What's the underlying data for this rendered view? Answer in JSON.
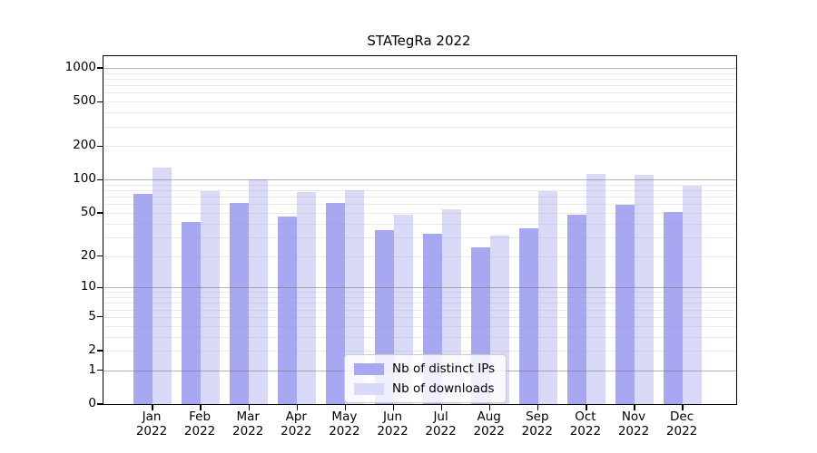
{
  "title": "STATegRa 2022",
  "chart_data": {
    "type": "bar",
    "title": "STATegRa 2022",
    "xlabel": "",
    "ylabel": "",
    "scale": "log1p",
    "grid": true,
    "legend_position": "bottom-center",
    "categories": [
      "Jan 2022",
      "Feb 2022",
      "Mar 2022",
      "Apr 2022",
      "May 2022",
      "Jun 2022",
      "Jul 2022",
      "Aug 2022",
      "Sep 2022",
      "Oct 2022",
      "Nov 2022",
      "Dec 2022"
    ],
    "series": [
      {
        "name": "Nb of distinct IPs",
        "color": "#a7a7f2",
        "values": [
          74,
          41,
          62,
          46,
          61,
          35,
          32,
          24,
          36,
          48,
          59,
          51
        ]
      },
      {
        "name": "Nb of downloads",
        "color": "#d9d9f8",
        "values": [
          128,
          78,
          101,
          77,
          80,
          48,
          54,
          31,
          78,
          112,
          110,
          88
        ]
      }
    ],
    "y_ticks": [
      1000,
      500,
      200,
      100,
      50,
      20,
      10,
      5,
      2,
      1,
      0
    ],
    "ylim": [
      0,
      1300
    ],
    "colors": {
      "axis": "#000000",
      "grid_major": "#9a9a9a",
      "grid_minor": "#e6e6e6",
      "background": "#ffffff"
    }
  }
}
